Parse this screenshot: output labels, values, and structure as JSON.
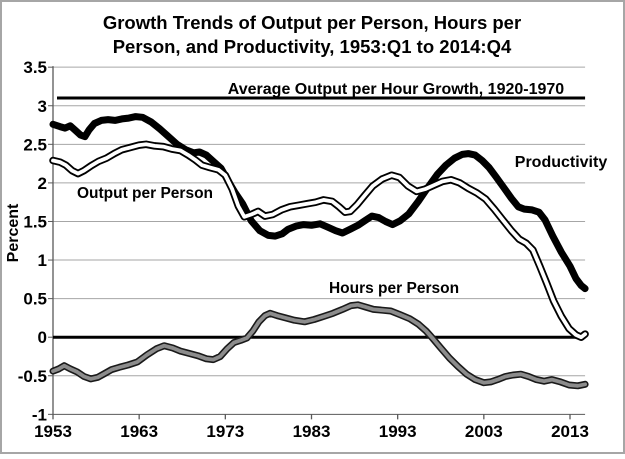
{
  "chart_data": {
    "type": "line",
    "title_line1": "Growth Trends of Output per Person, Hours per",
    "title_line2": "Person, and Productivity, 1953:Q1 to 2014:Q4",
    "ylabel": "Percent",
    "xlabel": "",
    "xlim": [
      1953,
      2014.75
    ],
    "ylim": [
      -1,
      3.5
    ],
    "grid": true,
    "legend_position": "inline-labels",
    "x_ticks": [
      1953,
      1963,
      1973,
      1983,
      1993,
      2003,
      2013
    ],
    "y_ticks": [
      3.5,
      3,
      2.5,
      2,
      1.5,
      1,
      0.5,
      0,
      -0.5,
      -1
    ],
    "colors": {
      "productivity_line": "#000000",
      "output_core": "#ffffff",
      "output_outline": "#000000",
      "hours_core": "#8c8c8c",
      "hours_outline": "#1a1a1a",
      "reference_line": "#000000",
      "gridline": "#a6a6a6",
      "axis": "#595959",
      "frame_border": "#a6a6a6",
      "background": "#ffffff"
    },
    "reference_lines": [
      {
        "name": "average-output-per-hour-line",
        "value": 3.1,
        "label": "Average Output per Hour Growth, 1920-1970"
      },
      {
        "name": "zero-line",
        "value": 0,
        "label": ""
      }
    ],
    "series": [
      {
        "name": "Productivity",
        "style": "thick-black",
        "points": [
          [
            1953.0,
            2.76
          ],
          [
            1953.8,
            2.73
          ],
          [
            1954.4,
            2.71
          ],
          [
            1955.0,
            2.74
          ],
          [
            1955.6,
            2.68
          ],
          [
            1956.2,
            2.62
          ],
          [
            1956.7,
            2.6
          ],
          [
            1957.2,
            2.69
          ],
          [
            1957.8,
            2.77
          ],
          [
            1958.6,
            2.81
          ],
          [
            1959.4,
            2.82
          ],
          [
            1960.2,
            2.81
          ],
          [
            1961.0,
            2.83
          ],
          [
            1961.8,
            2.84
          ],
          [
            1962.6,
            2.86
          ],
          [
            1963.4,
            2.85
          ],
          [
            1964.4,
            2.79
          ],
          [
            1965.4,
            2.7
          ],
          [
            1966.4,
            2.6
          ],
          [
            1967.4,
            2.5
          ],
          [
            1968.4,
            2.43
          ],
          [
            1969.3,
            2.39
          ],
          [
            1970.0,
            2.4
          ],
          [
            1970.8,
            2.36
          ],
          [
            1971.6,
            2.28
          ],
          [
            1972.5,
            2.19
          ],
          [
            1973.3,
            2.03
          ],
          [
            1974.1,
            1.88
          ],
          [
            1975.0,
            1.73
          ],
          [
            1976.0,
            1.51
          ],
          [
            1977.0,
            1.38
          ],
          [
            1978.0,
            1.32
          ],
          [
            1978.8,
            1.31
          ],
          [
            1979.6,
            1.34
          ],
          [
            1980.3,
            1.4
          ],
          [
            1981.2,
            1.44
          ],
          [
            1982.1,
            1.46
          ],
          [
            1983.0,
            1.45
          ],
          [
            1984.0,
            1.47
          ],
          [
            1985.0,
            1.42
          ],
          [
            1985.8,
            1.38
          ],
          [
            1986.6,
            1.35
          ],
          [
            1987.5,
            1.4
          ],
          [
            1988.4,
            1.45
          ],
          [
            1989.2,
            1.51
          ],
          [
            1990.0,
            1.57
          ],
          [
            1990.8,
            1.55
          ],
          [
            1991.6,
            1.5
          ],
          [
            1992.4,
            1.46
          ],
          [
            1993.3,
            1.51
          ],
          [
            1994.3,
            1.6
          ],
          [
            1995.4,
            1.76
          ],
          [
            1996.5,
            1.94
          ],
          [
            1997.6,
            2.11
          ],
          [
            1998.6,
            2.23
          ],
          [
            1999.6,
            2.32
          ],
          [
            2000.5,
            2.37
          ],
          [
            2001.2,
            2.38
          ],
          [
            2002.0,
            2.36
          ],
          [
            2002.8,
            2.29
          ],
          [
            2003.6,
            2.2
          ],
          [
            2004.4,
            2.08
          ],
          [
            2005.3,
            1.94
          ],
          [
            2006.2,
            1.8
          ],
          [
            2007.0,
            1.69
          ],
          [
            2007.7,
            1.66
          ],
          [
            2008.6,
            1.65
          ],
          [
            2009.4,
            1.62
          ],
          [
            2010.1,
            1.52
          ],
          [
            2011.0,
            1.31
          ],
          [
            2012.0,
            1.1
          ],
          [
            2013.0,
            0.92
          ],
          [
            2013.7,
            0.76
          ],
          [
            2014.3,
            0.67
          ],
          [
            2014.75,
            0.63
          ]
        ]
      },
      {
        "name": "Output per Person",
        "style": "white-outlined",
        "points": [
          [
            1953.0,
            2.29
          ],
          [
            1953.8,
            2.27
          ],
          [
            1954.5,
            2.23
          ],
          [
            1955.2,
            2.16
          ],
          [
            1955.9,
            2.12
          ],
          [
            1956.6,
            2.16
          ],
          [
            1957.4,
            2.22
          ],
          [
            1958.3,
            2.28
          ],
          [
            1959.2,
            2.32
          ],
          [
            1960.1,
            2.38
          ],
          [
            1961.0,
            2.43
          ],
          [
            1962.0,
            2.46
          ],
          [
            1963.0,
            2.49
          ],
          [
            1963.8,
            2.5
          ],
          [
            1964.8,
            2.48
          ],
          [
            1965.8,
            2.47
          ],
          [
            1966.8,
            2.44
          ],
          [
            1967.8,
            2.42
          ],
          [
            1968.7,
            2.36
          ],
          [
            1969.5,
            2.3
          ],
          [
            1970.3,
            2.23
          ],
          [
            1971.2,
            2.2
          ],
          [
            1972.2,
            2.17
          ],
          [
            1973.0,
            2.1
          ],
          [
            1973.8,
            1.92
          ],
          [
            1974.5,
            1.7
          ],
          [
            1975.2,
            1.56
          ],
          [
            1976.0,
            1.59
          ],
          [
            1976.8,
            1.63
          ],
          [
            1977.6,
            1.57
          ],
          [
            1978.5,
            1.59
          ],
          [
            1979.5,
            1.65
          ],
          [
            1980.5,
            1.69
          ],
          [
            1981.5,
            1.71
          ],
          [
            1982.5,
            1.73
          ],
          [
            1983.5,
            1.75
          ],
          [
            1984.4,
            1.78
          ],
          [
            1985.4,
            1.76
          ],
          [
            1986.2,
            1.69
          ],
          [
            1986.9,
            1.62
          ],
          [
            1987.5,
            1.63
          ],
          [
            1988.3,
            1.72
          ],
          [
            1989.2,
            1.84
          ],
          [
            1990.1,
            1.96
          ],
          [
            1991.2,
            2.05
          ],
          [
            1992.3,
            2.1
          ],
          [
            1993.2,
            2.07
          ],
          [
            1994.2,
            1.96
          ],
          [
            1995.2,
            1.89
          ],
          [
            1996.2,
            1.92
          ],
          [
            1997.2,
            1.97
          ],
          [
            1998.2,
            2.02
          ],
          [
            1999.2,
            2.04
          ],
          [
            2000.2,
            2.0
          ],
          [
            2001.2,
            1.93
          ],
          [
            2002.2,
            1.87
          ],
          [
            2003.2,
            1.79
          ],
          [
            2004.2,
            1.66
          ],
          [
            2005.2,
            1.52
          ],
          [
            2006.2,
            1.38
          ],
          [
            2007.1,
            1.27
          ],
          [
            2007.9,
            1.22
          ],
          [
            2008.7,
            1.13
          ],
          [
            2009.5,
            0.92
          ],
          [
            2010.3,
            0.7
          ],
          [
            2011.1,
            0.47
          ],
          [
            2012.0,
            0.27
          ],
          [
            2012.9,
            0.11
          ],
          [
            2013.7,
            0.03
          ],
          [
            2014.3,
            0.0
          ],
          [
            2014.75,
            0.04
          ]
        ]
      },
      {
        "name": "Hours per Person",
        "style": "gray-outlined",
        "points": [
          [
            1953.0,
            -0.44
          ],
          [
            1953.7,
            -0.41
          ],
          [
            1954.3,
            -0.37
          ],
          [
            1955.0,
            -0.41
          ],
          [
            1955.8,
            -0.45
          ],
          [
            1956.6,
            -0.51
          ],
          [
            1957.4,
            -0.54
          ],
          [
            1958.2,
            -0.52
          ],
          [
            1959.0,
            -0.47
          ],
          [
            1959.8,
            -0.42
          ],
          [
            1960.7,
            -0.39
          ],
          [
            1961.7,
            -0.36
          ],
          [
            1962.8,
            -0.32
          ],
          [
            1963.9,
            -0.23
          ],
          [
            1965.0,
            -0.15
          ],
          [
            1965.9,
            -0.11
          ],
          [
            1966.9,
            -0.14
          ],
          [
            1967.8,
            -0.18
          ],
          [
            1968.8,
            -0.21
          ],
          [
            1969.8,
            -0.24
          ],
          [
            1970.8,
            -0.28
          ],
          [
            1971.6,
            -0.29
          ],
          [
            1972.4,
            -0.25
          ],
          [
            1973.2,
            -0.15
          ],
          [
            1974.0,
            -0.07
          ],
          [
            1974.8,
            -0.04
          ],
          [
            1975.5,
            -0.01
          ],
          [
            1976.2,
            0.08
          ],
          [
            1976.9,
            0.2
          ],
          [
            1977.6,
            0.28
          ],
          [
            1978.2,
            0.31
          ],
          [
            1979.0,
            0.28
          ],
          [
            1980.0,
            0.25
          ],
          [
            1981.0,
            0.22
          ],
          [
            1982.2,
            0.2
          ],
          [
            1983.3,
            0.23
          ],
          [
            1984.4,
            0.27
          ],
          [
            1985.5,
            0.31
          ],
          [
            1986.6,
            0.36
          ],
          [
            1987.6,
            0.41
          ],
          [
            1988.4,
            0.42
          ],
          [
            1989.3,
            0.39
          ],
          [
            1990.2,
            0.36
          ],
          [
            1991.2,
            0.35
          ],
          [
            1992.2,
            0.34
          ],
          [
            1993.3,
            0.29
          ],
          [
            1994.4,
            0.24
          ],
          [
            1995.4,
            0.17
          ],
          [
            1996.3,
            0.08
          ],
          [
            1997.1,
            -0.02
          ],
          [
            1998.0,
            -0.14
          ],
          [
            1999.0,
            -0.27
          ],
          [
            2000.0,
            -0.38
          ],
          [
            2001.0,
            -0.48
          ],
          [
            2002.0,
            -0.55
          ],
          [
            2003.0,
            -0.59
          ],
          [
            2003.8,
            -0.58
          ],
          [
            2004.6,
            -0.55
          ],
          [
            2005.5,
            -0.51
          ],
          [
            2006.4,
            -0.49
          ],
          [
            2007.3,
            -0.48
          ],
          [
            2008.2,
            -0.51
          ],
          [
            2009.1,
            -0.55
          ],
          [
            2010.0,
            -0.57
          ],
          [
            2010.9,
            -0.55
          ],
          [
            2011.9,
            -0.58
          ],
          [
            2012.9,
            -0.62
          ],
          [
            2013.9,
            -0.63
          ],
          [
            2014.75,
            -0.61
          ]
        ]
      }
    ]
  }
}
